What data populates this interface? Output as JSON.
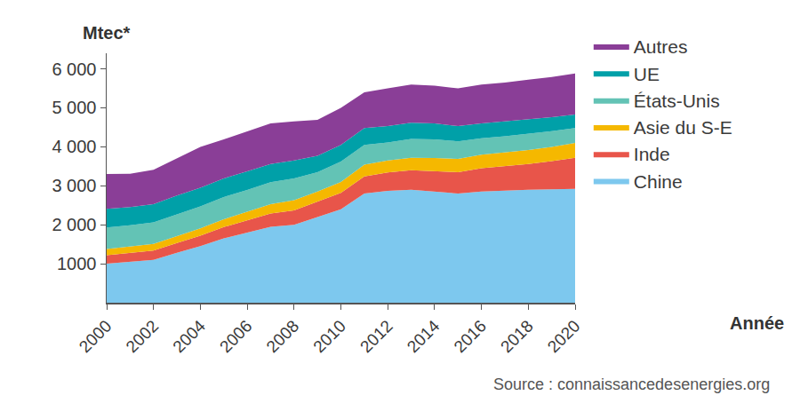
{
  "chart_data": {
    "type": "area",
    "y_label": "Mtec*",
    "x_label": "Année",
    "source": "Source : connaissancedesenergies.org",
    "x": [
      2000,
      2001,
      2002,
      2003,
      2004,
      2005,
      2006,
      2007,
      2008,
      2009,
      2010,
      2011,
      2012,
      2013,
      2014,
      2015,
      2016,
      2017,
      2018,
      2019,
      2020
    ],
    "series": [
      {
        "name": "Chine",
        "color": "#7dc8ee",
        "values": [
          1000,
          1050,
          1100,
          1280,
          1450,
          1650,
          1800,
          1950,
          2000,
          2200,
          2400,
          2800,
          2870,
          2900,
          2850,
          2800,
          2850,
          2880,
          2900,
          2910,
          2920
        ]
      },
      {
        "name": "Inde",
        "color": "#e8554a",
        "values": [
          220,
          230,
          240,
          250,
          270,
          290,
          310,
          340,
          370,
          390,
          420,
          440,
          470,
          500,
          530,
          550,
          600,
          620,
          660,
          720,
          800
        ]
      },
      {
        "name": "Asie du S-E",
        "color": "#f5b800",
        "values": [
          160,
          165,
          170,
          180,
          190,
          200,
          220,
          240,
          260,
          260,
          280,
          300,
          310,
          320,
          330,
          340,
          350,
          360,
          360,
          370,
          380
        ]
      },
      {
        "name": "États-Unis",
        "color": "#63c3b5",
        "values": [
          550,
          540,
          550,
          560,
          560,
          570,
          560,
          560,
          560,
          500,
          520,
          510,
          460,
          480,
          480,
          450,
          420,
          410,
          410,
          400,
          380
        ]
      },
      {
        "name": "UE",
        "color": "#00a0a8",
        "values": [
          480,
          470,
          470,
          480,
          480,
          480,
          480,
          470,
          460,
          420,
          430,
          430,
          420,
          420,
          410,
          390,
          380,
          380,
          370,
          360,
          350
        ]
      },
      {
        "name": "Autres",
        "color": "#8a3e97",
        "values": [
          890,
          855,
          880,
          950,
          1050,
          1000,
          1030,
          1040,
          1000,
          920,
          950,
          920,
          970,
          980,
          970,
          970,
          1000,
          1000,
          1020,
          1030,
          1050
        ]
      }
    ],
    "xlim": [
      2000,
      2020
    ],
    "xticks": [
      2000,
      2002,
      2004,
      2006,
      2008,
      2010,
      2012,
      2014,
      2016,
      2018,
      2020
    ],
    "ylim": [
      0,
      6400
    ],
    "yticks": [
      1000,
      {
        "value": 2000,
        "label": "2 000"
      },
      {
        "value": 3000,
        "label": "3 000"
      },
      {
        "value": 4000,
        "label": "4 000"
      },
      {
        "value": 5000,
        "label": "5 000"
      },
      {
        "value": 6000,
        "label": "6 000"
      }
    ],
    "stacked": true,
    "grid": false,
    "legend": "right"
  }
}
